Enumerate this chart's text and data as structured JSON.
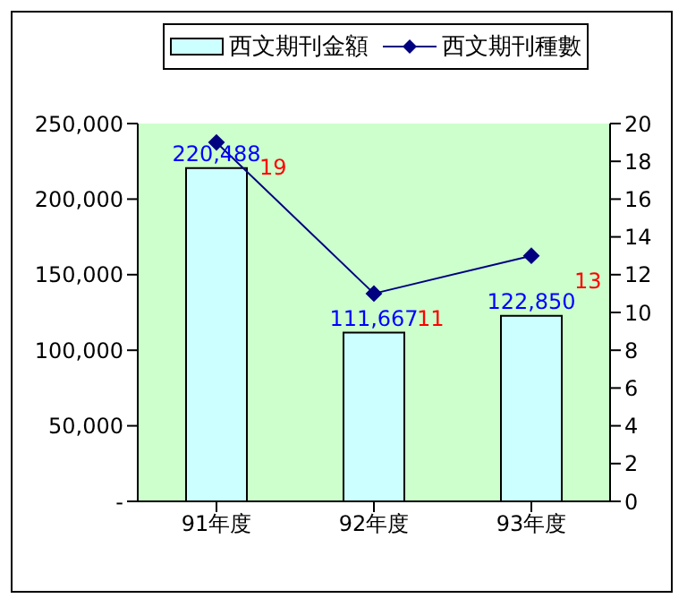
{
  "chart_data": {
    "type": "bar",
    "categories": [
      "91年度",
      "92年度",
      "93年度"
    ],
    "series": [
      {
        "name": "西文期刊金額",
        "color": "#ccffff",
        "values": [
          220488,
          111667,
          122850
        ],
        "value_labels": [
          "220,488",
          "111,667",
          "122,850"
        ]
      },
      {
        "name": "西文期刊種數",
        "type": "line",
        "axis": "y2",
        "color": "#000080",
        "values": [
          19,
          11,
          13
        ],
        "value_labels": [
          "19",
          "11",
          "13"
        ],
        "marker": "diamond"
      }
    ],
    "ylim": [
      0,
      250000
    ],
    "yticks": [
      {
        "value": 0,
        "label": "-"
      },
      {
        "value": 50000,
        "label": "50,000"
      },
      {
        "value": 100000,
        "label": "100,000"
      },
      {
        "value": 150000,
        "label": "150,000"
      },
      {
        "value": 200000,
        "label": "200,000"
      },
      {
        "value": 250000,
        "label": "250,000"
      }
    ],
    "y2lim": [
      0,
      20
    ],
    "y2ticks": [
      0,
      2,
      4,
      6,
      8,
      10,
      12,
      14,
      16,
      18,
      20
    ],
    "legend": "top"
  }
}
